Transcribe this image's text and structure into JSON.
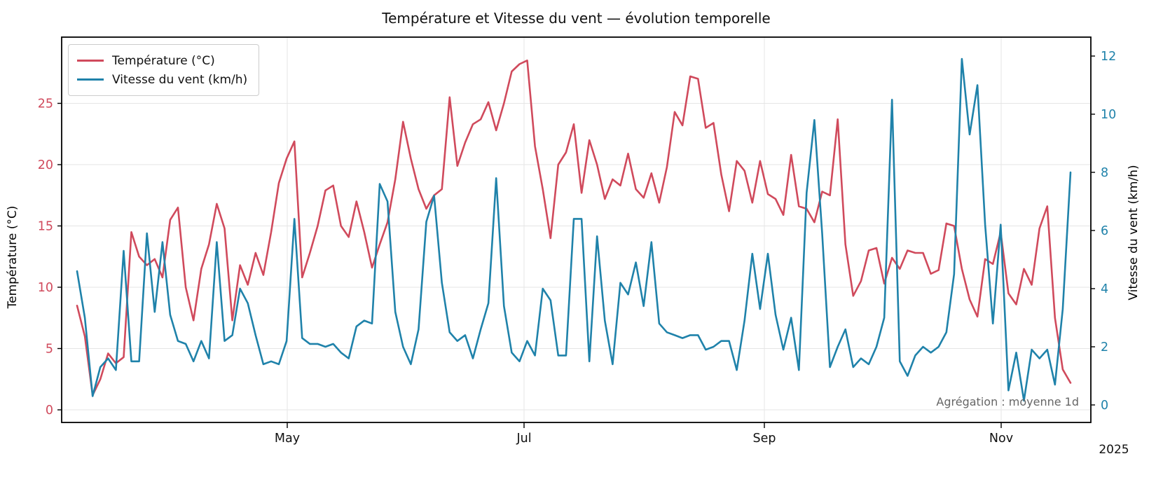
{
  "title": "Température et Vitesse du vent — évolution temporelle",
  "annotation": "Agrégation : moyenne 1d",
  "legend": {
    "items": [
      {
        "label": "Température (°C)",
        "color": "#d04a5c"
      },
      {
        "label": "Vitesse du vent (km/h)",
        "color": "#1f82aa"
      }
    ]
  },
  "axes": {
    "left": {
      "label": "Température (°C)",
      "color": "#d04a5c",
      "ticks": [
        0,
        5,
        10,
        15,
        20,
        25
      ]
    },
    "right": {
      "label": "Vitesse du vent (km/h)",
      "color": "#1f82aa",
      "ticks": [
        0,
        2,
        4,
        6,
        8,
        10,
        12
      ]
    },
    "x": {
      "tick_labels": [
        "May",
        "Jul",
        "Sep",
        "Nov"
      ],
      "tick_dates": [
        "2025-05-01",
        "2025-07-01",
        "2025-09-01",
        "2025-11-01"
      ],
      "year_label": "2025"
    }
  },
  "chart_data": {
    "type": "line",
    "title": "Température et Vitesse du vent — évolution temporelle",
    "xlabel": "",
    "x_start": "2025-03-08",
    "x_step_days": 2,
    "x_tick_labels": [
      "May",
      "Jul",
      "Sep",
      "Nov"
    ],
    "grid": true,
    "legend_position": "upper left",
    "ylim_left": [
      -1.0,
      30.4
    ],
    "ylim_right": [
      -0.6,
      12.65
    ],
    "annotation": "Agrégation : moyenne 1d",
    "series": [
      {
        "name": "Température (°C)",
        "axis": "left",
        "color": "#d04a5c",
        "values": [
          8.5,
          6.0,
          1.2,
          2.5,
          4.6,
          3.8,
          4.3,
          14.5,
          12.5,
          11.8,
          12.3,
          10.8,
          15.5,
          16.5,
          10.0,
          7.3,
          11.5,
          13.5,
          16.8,
          14.8,
          7.3,
          11.8,
          10.2,
          12.8,
          11.0,
          14.5,
          18.5,
          20.5,
          21.9,
          10.8,
          12.8,
          15.0,
          17.9,
          18.3,
          15.0,
          14.1,
          17.0,
          14.5,
          11.6,
          13.5,
          15.3,
          18.8,
          23.5,
          20.5,
          18.0,
          16.4,
          17.5,
          18.0,
          25.5,
          19.9,
          21.8,
          23.3,
          23.7,
          25.1,
          22.8,
          25.0,
          27.6,
          28.2,
          28.5,
          21.5,
          18.0,
          14.0,
          20.0,
          21.0,
          23.3,
          17.7,
          22.0,
          20.0,
          17.2,
          18.8,
          18.3,
          20.9,
          18.0,
          17.3,
          19.3,
          16.9,
          19.8,
          24.3,
          23.2,
          27.2,
          27.0,
          23.0,
          23.4,
          19.2,
          16.2,
          20.3,
          19.5,
          16.9,
          20.3,
          17.6,
          17.2,
          15.9,
          20.8,
          16.6,
          16.4,
          15.3,
          17.8,
          17.5,
          23.7,
          13.5,
          9.3,
          10.5,
          13.0,
          13.2,
          10.3,
          12.4,
          11.5,
          13.0,
          12.8,
          12.8,
          11.1,
          11.4,
          15.2,
          15.0,
          11.5,
          9.0,
          7.6,
          12.3,
          11.9,
          14.5,
          9.5,
          8.6,
          11.5,
          10.2,
          14.8,
          16.6,
          7.5,
          3.3,
          2.2
        ]
      },
      {
        "name": "Vitesse du vent (km/h)",
        "axis": "right",
        "color": "#1f82aa",
        "values": [
          4.6,
          3.0,
          0.3,
          1.3,
          1.6,
          1.2,
          5.3,
          1.5,
          1.5,
          5.9,
          3.2,
          5.6,
          3.1,
          2.2,
          2.1,
          1.5,
          2.2,
          1.6,
          5.6,
          2.2,
          2.4,
          4.0,
          3.5,
          2.4,
          1.4,
          1.5,
          1.4,
          2.2,
          6.4,
          2.3,
          2.1,
          2.1,
          2.0,
          2.1,
          1.8,
          1.6,
          2.7,
          2.9,
          2.8,
          7.6,
          7.0,
          3.2,
          2.0,
          1.4,
          2.6,
          6.3,
          7.2,
          4.2,
          2.5,
          2.2,
          2.4,
          1.6,
          2.6,
          3.5,
          7.8,
          3.4,
          1.8,
          1.5,
          2.2,
          1.7,
          4.0,
          3.6,
          1.7,
          1.7,
          6.4,
          6.4,
          1.5,
          5.8,
          2.9,
          1.4,
          4.2,
          3.8,
          4.9,
          3.4,
          5.6,
          2.8,
          2.5,
          2.4,
          2.3,
          2.4,
          2.4,
          1.9,
          2.0,
          2.2,
          2.2,
          1.2,
          2.9,
          5.2,
          3.3,
          5.2,
          3.1,
          1.9,
          3.0,
          1.2,
          7.3,
          9.8,
          5.9,
          1.3,
          2.0,
          2.6,
          1.3,
          1.6,
          1.4,
          2.0,
          3.0,
          10.5,
          1.5,
          1.0,
          1.7,
          2.0,
          1.8,
          2.0,
          2.5,
          4.5,
          11.9,
          9.3,
          11.0,
          6.2,
          2.8,
          6.2,
          0.5,
          1.8,
          0.15,
          1.9,
          1.6,
          1.9,
          0.7,
          3.3,
          8.0
        ]
      }
    ]
  }
}
